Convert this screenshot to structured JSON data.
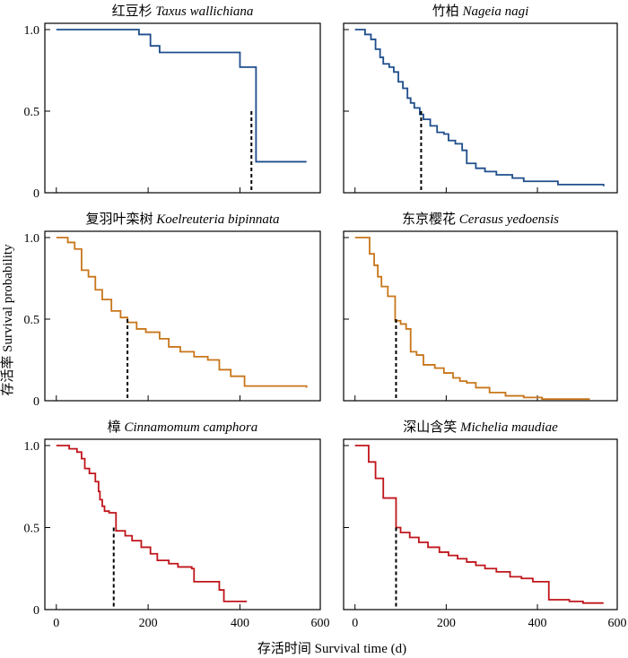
{
  "figure": {
    "ylabel": "存活率 Survival probability",
    "xlabel": "存活时间 Survival time (d)"
  },
  "colors": {
    "blue": "#1f4e8c",
    "orange": "#c8761a",
    "red": "#c0151b",
    "axis": "#000000"
  },
  "chart_data": [
    {
      "type": "line",
      "title_cn": "红豆杉",
      "title_latin": "Taxus wallichiana",
      "color": "#1f4e8c",
      "xlim": [
        -25,
        575
      ],
      "ylim": [
        0,
        1.0
      ],
      "xticks": [
        0,
        200,
        400
      ],
      "xtick_labels": [
        "",
        "",
        ""
      ],
      "yticks": [
        0,
        0.5,
        1.0
      ],
      "ytick_labels": [
        "0",
        "0.5",
        "1.0"
      ],
      "median_survival_time": 425,
      "steps": [
        [
          0,
          1.0
        ],
        [
          180,
          0.97
        ],
        [
          205,
          0.9
        ],
        [
          225,
          0.86
        ],
        [
          400,
          0.77
        ],
        [
          435,
          0.19
        ],
        [
          545,
          0.19
        ]
      ]
    },
    {
      "type": "line",
      "title_cn": "竹柏",
      "title_latin": "Nageia nagi",
      "color": "#1f4e8c",
      "xlim": [
        -25,
        575
      ],
      "ylim": [
        0,
        1.0
      ],
      "xticks": [
        0,
        200,
        400
      ],
      "xtick_labels": [
        "",
        "",
        ""
      ],
      "yticks": [
        0,
        0.5,
        1.0
      ],
      "ytick_labels": [
        "",
        "",
        ""
      ],
      "median_survival_time": 145,
      "steps": [
        [
          0,
          1.0
        ],
        [
          22,
          0.97
        ],
        [
          35,
          0.94
        ],
        [
          45,
          0.88
        ],
        [
          55,
          0.83
        ],
        [
          62,
          0.79
        ],
        [
          75,
          0.77
        ],
        [
          85,
          0.74
        ],
        [
          95,
          0.68
        ],
        [
          105,
          0.64
        ],
        [
          115,
          0.58
        ],
        [
          122,
          0.55
        ],
        [
          130,
          0.52
        ],
        [
          142,
          0.48
        ],
        [
          150,
          0.45
        ],
        [
          165,
          0.41
        ],
        [
          180,
          0.37
        ],
        [
          195,
          0.36
        ],
        [
          205,
          0.32
        ],
        [
          220,
          0.3
        ],
        [
          235,
          0.26
        ],
        [
          245,
          0.18
        ],
        [
          265,
          0.15
        ],
        [
          285,
          0.13
        ],
        [
          310,
          0.11
        ],
        [
          345,
          0.09
        ],
        [
          370,
          0.07
        ],
        [
          445,
          0.05
        ],
        [
          545,
          0.04
        ]
      ]
    },
    {
      "type": "line",
      "title_cn": "复羽叶栾树",
      "title_latin": "Koelreuteria bipinnata",
      "color": "#c8761a",
      "xlim": [
        -25,
        575
      ],
      "ylim": [
        0,
        1.0
      ],
      "xticks": [
        0,
        200,
        400
      ],
      "xtick_labels": [
        "",
        "",
        ""
      ],
      "yticks": [
        0,
        0.5,
        1.0
      ],
      "ytick_labels": [
        "0",
        "0.5",
        "1.0"
      ],
      "median_survival_time": 155,
      "steps": [
        [
          0,
          1.0
        ],
        [
          25,
          0.97
        ],
        [
          40,
          0.93
        ],
        [
          55,
          0.8
        ],
        [
          70,
          0.76
        ],
        [
          85,
          0.68
        ],
        [
          100,
          0.62
        ],
        [
          120,
          0.55
        ],
        [
          140,
          0.51
        ],
        [
          155,
          0.48
        ],
        [
          175,
          0.44
        ],
        [
          195,
          0.42
        ],
        [
          225,
          0.38
        ],
        [
          245,
          0.33
        ],
        [
          270,
          0.3
        ],
        [
          300,
          0.27
        ],
        [
          330,
          0.25
        ],
        [
          355,
          0.19
        ],
        [
          380,
          0.15
        ],
        [
          410,
          0.09
        ],
        [
          545,
          0.08
        ]
      ]
    },
    {
      "type": "line",
      "title_cn": "东京樱花",
      "title_latin": "Cerasus yedoensis",
      "color": "#c8761a",
      "xlim": [
        -25,
        575
      ],
      "ylim": [
        0,
        1.0
      ],
      "xticks": [
        0,
        200,
        400
      ],
      "xtick_labels": [
        "",
        "",
        ""
      ],
      "yticks": [
        0,
        0.5,
        1.0
      ],
      "ytick_labels": [
        "",
        "",
        ""
      ],
      "median_survival_time": 90,
      "steps": [
        [
          0,
          1.0
        ],
        [
          32,
          0.9
        ],
        [
          42,
          0.83
        ],
        [
          50,
          0.76
        ],
        [
          58,
          0.7
        ],
        [
          72,
          0.64
        ],
        [
          88,
          0.49
        ],
        [
          100,
          0.47
        ],
        [
          112,
          0.44
        ],
        [
          122,
          0.3
        ],
        [
          135,
          0.28
        ],
        [
          150,
          0.22
        ],
        [
          175,
          0.2
        ],
        [
          195,
          0.17
        ],
        [
          215,
          0.14
        ],
        [
          230,
          0.12
        ],
        [
          245,
          0.11
        ],
        [
          265,
          0.08
        ],
        [
          295,
          0.05
        ],
        [
          330,
          0.03
        ],
        [
          370,
          0.02
        ],
        [
          410,
          0.01
        ],
        [
          515,
          0.01
        ]
      ]
    },
    {
      "type": "line",
      "title_cn": "樟",
      "title_latin": "Cinnamomum camphora",
      "color": "#c0151b",
      "xlim": [
        -25,
        575
      ],
      "ylim": [
        0,
        1.0
      ],
      "xticks": [
        0,
        200,
        400
      ],
      "xtick_labels": [
        "0",
        "200",
        "400"
      ],
      "yticks": [
        0,
        0.5,
        1.0
      ],
      "ytick_labels": [
        "0",
        "0.5",
        "1.0"
      ],
      "median_survival_time": 125,
      "steps": [
        [
          0,
          1.0
        ],
        [
          28,
          0.98
        ],
        [
          45,
          0.96
        ],
        [
          55,
          0.92
        ],
        [
          62,
          0.86
        ],
        [
          72,
          0.83
        ],
        [
          85,
          0.78
        ],
        [
          92,
          0.72
        ],
        [
          95,
          0.67
        ],
        [
          100,
          0.63
        ],
        [
          105,
          0.6
        ],
        [
          115,
          0.59
        ],
        [
          130,
          0.48
        ],
        [
          150,
          0.45
        ],
        [
          165,
          0.42
        ],
        [
          185,
          0.38
        ],
        [
          205,
          0.34
        ],
        [
          220,
          0.3
        ],
        [
          245,
          0.28
        ],
        [
          265,
          0.26
        ],
        [
          295,
          0.25
        ],
        [
          300,
          0.17
        ],
        [
          355,
          0.12
        ],
        [
          365,
          0.05
        ],
        [
          415,
          0.05
        ]
      ]
    },
    {
      "type": "line",
      "title_cn": "深山含笑",
      "title_latin": "Michelia maudiae",
      "color": "#c0151b",
      "xlim": [
        -25,
        575
      ],
      "ylim": [
        0,
        1.0
      ],
      "xticks": [
        0,
        200,
        400
      ],
      "xtick_labels": [
        "0",
        "200",
        "400"
      ],
      "yticks": [
        0,
        0.5,
        1.0
      ],
      "ytick_labels": [
        "",
        "",
        ""
      ],
      "median_survival_time": 90,
      "steps": [
        [
          0,
          1.0
        ],
        [
          30,
          0.9
        ],
        [
          45,
          0.8
        ],
        [
          62,
          0.68
        ],
        [
          90,
          0.5
        ],
        [
          100,
          0.47
        ],
        [
          120,
          0.44
        ],
        [
          140,
          0.41
        ],
        [
          160,
          0.38
        ],
        [
          185,
          0.35
        ],
        [
          205,
          0.33
        ],
        [
          225,
          0.31
        ],
        [
          245,
          0.29
        ],
        [
          265,
          0.27
        ],
        [
          285,
          0.25
        ],
        [
          310,
          0.23
        ],
        [
          340,
          0.2
        ],
        [
          365,
          0.19
        ],
        [
          390,
          0.17
        ],
        [
          425,
          0.06
        ],
        [
          470,
          0.05
        ],
        [
          500,
          0.04
        ],
        [
          545,
          0.04
        ]
      ]
    }
  ],
  "shared_x_axis": {
    "tick_labels": [
      "0",
      "200",
      "400",
      "600"
    ]
  }
}
